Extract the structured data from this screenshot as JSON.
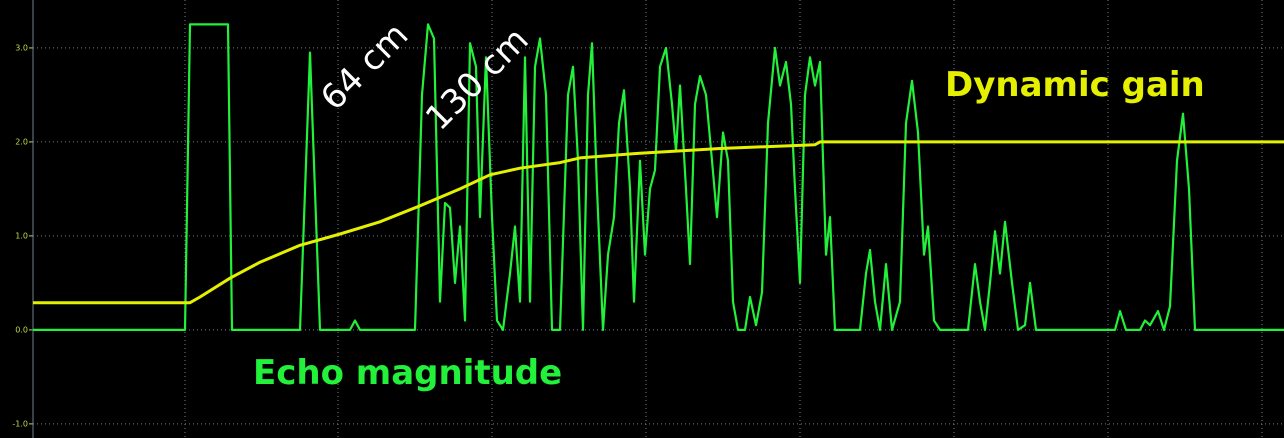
{
  "chart_data": {
    "type": "line",
    "xlim": [
      33,
      1284
    ],
    "ylim": [
      -1.15,
      3.51
    ],
    "yticks": [
      {
        "value": 3,
        "label": "3.0"
      },
      {
        "value": 2,
        "label": "2.0"
      },
      {
        "value": 1,
        "label": "1.0"
      },
      {
        "value": 0,
        "label": "0.0"
      },
      {
        "value": -1,
        "label": "-1.0"
      }
    ],
    "grid": true,
    "annotations": [
      "64 cm",
      "130 cm"
    ],
    "series": [
      {
        "name": "Echo magnitude",
        "color": "#22f03a",
        "x": [
          33,
          185,
          190,
          228,
          232,
          300,
          310,
          320,
          350,
          355,
          360,
          415,
          422,
          428,
          434,
          440,
          445,
          450,
          455,
          460,
          465,
          470,
          476,
          480,
          486,
          492,
          497,
          503,
          510,
          515,
          520,
          525,
          530,
          535,
          540,
          546,
          552,
          560,
          568,
          573,
          578,
          583,
          588,
          592,
          597,
          603,
          608,
          614,
          619,
          624,
          630,
          634,
          640,
          645,
          650,
          655,
          660,
          666,
          672,
          676,
          680,
          686,
          690,
          695,
          700,
          706,
          712,
          717,
          723,
          728,
          733,
          738,
          745,
          750,
          756,
          762,
          768,
          775,
          780,
          786,
          791,
          795,
          800,
          805,
          810,
          815,
          820,
          826,
          830,
          835,
          860,
          866,
          870,
          875,
          880,
          886,
          892,
          900,
          906,
          912,
          918,
          924,
          928,
          934,
          940,
          968,
          975,
          980,
          985,
          990,
          995,
          1000,
          1005,
          1012,
          1018,
          1025,
          1030,
          1036,
          1115,
          1120,
          1126,
          1140,
          1145,
          1150,
          1158,
          1164,
          1170,
          1177,
          1183,
          1189,
          1195,
          1284
        ],
        "values": [
          0,
          0,
          3.25,
          3.25,
          0,
          0,
          2.95,
          0,
          0,
          0.1,
          0,
          0,
          2.5,
          3.25,
          3.1,
          0.3,
          1.35,
          1.3,
          0.5,
          1.1,
          0.1,
          3.05,
          2.8,
          1.2,
          2.9,
          1.2,
          0.1,
          0,
          0.6,
          1.1,
          0.3,
          2.9,
          0.3,
          2.8,
          3.1,
          2.5,
          0,
          0,
          2.5,
          2.8,
          1.8,
          0,
          2.5,
          3.05,
          1.5,
          0,
          0.8,
          1.2,
          2.2,
          2.55,
          1.5,
          0.3,
          1.8,
          0.8,
          1.5,
          1.7,
          2.8,
          3.0,
          2.4,
          1.9,
          2.6,
          1.5,
          0.7,
          2.4,
          2.7,
          2.5,
          1.8,
          1.2,
          2.1,
          1.8,
          0.3,
          0,
          0,
          0.35,
          0.05,
          0.4,
          2.2,
          3.0,
          2.6,
          2.85,
          2.4,
          1.5,
          0.5,
          2.5,
          2.9,
          2.6,
          2.85,
          0.8,
          1.2,
          0,
          0,
          0.6,
          0.85,
          0.3,
          0,
          0.7,
          0,
          0.3,
          2.2,
          2.65,
          2.1,
          0.8,
          1.1,
          0.1,
          0,
          0,
          0.7,
          0.3,
          0,
          0.5,
          1.05,
          0.6,
          1.15,
          0.5,
          0,
          0.05,
          0.5,
          0,
          0,
          0.2,
          0,
          0,
          0.1,
          0.05,
          0.2,
          0,
          0.25,
          1.8,
          2.3,
          1.5,
          0,
          0
        ]
      },
      {
        "name": "Dynamic gain",
        "color": "#e4f000",
        "x": [
          33,
          190,
          200,
          230,
          260,
          300,
          340,
          380,
          420,
          460,
          490,
          520,
          560,
          580,
          640,
          720,
          815,
          820,
          1284
        ],
        "values": [
          0.29,
          0.29,
          0.35,
          0.55,
          0.72,
          0.9,
          1.02,
          1.15,
          1.32,
          1.5,
          1.65,
          1.72,
          1.78,
          1.83,
          1.88,
          1.93,
          1.97,
          2.0,
          2.0
        ]
      }
    ]
  }
}
